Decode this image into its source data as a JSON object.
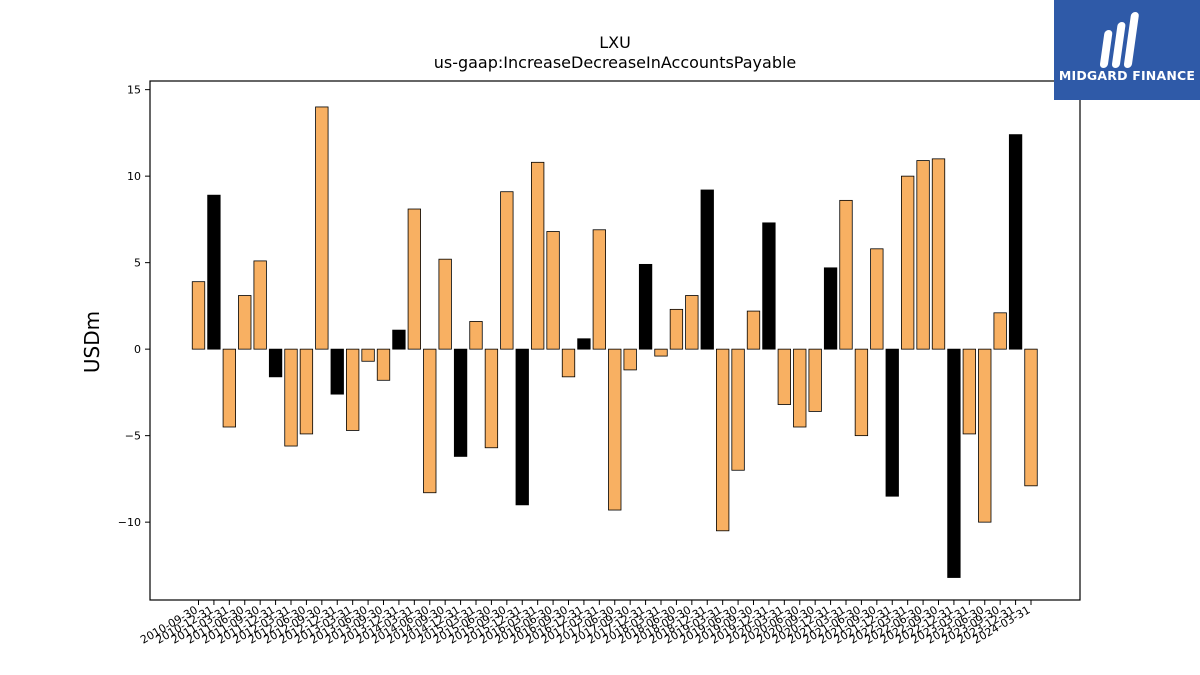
{
  "logo": {
    "text": "MIDGARD FINANCE",
    "background": "#2f5aa8",
    "icon": "midgard-logo-icon"
  },
  "colors": {
    "positive_bar": "#f8b062",
    "highlight_bar": "#000000",
    "bar_edge": "#000000"
  },
  "chart_data": {
    "type": "bar",
    "title": "LXU",
    "subtitle": "us-gaap:IncreaseDecreaseInAccountsPayable",
    "xlabel": "",
    "ylabel": "USDm",
    "ylim": [
      -14.5,
      15.5
    ],
    "yticks": [
      15,
      10,
      5,
      0,
      -5,
      -10
    ],
    "ytick_labels": [
      "15",
      "10",
      "5",
      "0",
      "−5",
      "−10"
    ],
    "grid": false,
    "categories": [
      "2010-09-30",
      "2010-12-31",
      "2011-03-31",
      "2011-06-30",
      "2011-09-30",
      "2011-12-31",
      "2012-03-31",
      "2012-06-30",
      "2012-09-30",
      "2012-12-31",
      "2013-03-31",
      "2013-06-30",
      "2013-09-30",
      "2013-12-31",
      "2014-03-31",
      "2014-06-30",
      "2014-09-30",
      "2014-12-31",
      "2015-03-31",
      "2015-06-30",
      "2015-09-30",
      "2015-12-31",
      "2016-03-31",
      "2016-06-30",
      "2016-09-30",
      "2016-12-31",
      "2017-03-31",
      "2017-06-30",
      "2017-09-30",
      "2017-12-31",
      "2018-03-31",
      "2018-06-30",
      "2018-09-30",
      "2018-12-31",
      "2019-03-31",
      "2019-06-30",
      "2019-09-30",
      "2019-12-31",
      "2020-03-31",
      "2020-06-30",
      "2020-09-30",
      "2020-12-31",
      "2021-03-31",
      "2021-06-30",
      "2021-09-30",
      "2021-12-31",
      "2022-03-31",
      "2022-06-30",
      "2022-09-30",
      "2022-12-31",
      "2023-03-31",
      "2023-06-30",
      "2023-09-30",
      "2023-12-31",
      "2024-03-31"
    ],
    "values": [
      3.9,
      8.9,
      -4.5,
      3.1,
      5.1,
      -1.6,
      -5.6,
      -4.9,
      14.0,
      -2.6,
      -4.7,
      -0.7,
      -1.8,
      1.1,
      8.1,
      -8.3,
      5.2,
      -6.2,
      1.6,
      -5.7,
      9.1,
      -9.0,
      10.8,
      6.8,
      -1.6,
      0.6,
      6.9,
      -9.3,
      -1.2,
      4.9,
      -0.4,
      2.3,
      3.1,
      9.2,
      -10.5,
      -7.0,
      2.2,
      7.3,
      -3.2,
      -4.5,
      -3.6,
      4.7,
      8.6,
      -5.0,
      5.8,
      -8.5,
      10.0,
      10.9,
      11.0,
      -13.2,
      -4.9,
      -10.0,
      2.1,
      12.4,
      -7.9
    ],
    "highlighted": [
      false,
      true,
      false,
      false,
      false,
      true,
      false,
      false,
      false,
      true,
      false,
      false,
      false,
      true,
      false,
      false,
      false,
      true,
      false,
      false,
      false,
      true,
      false,
      false,
      false,
      true,
      false,
      false,
      false,
      true,
      false,
      false,
      false,
      true,
      false,
      false,
      false,
      true,
      false,
      false,
      false,
      true,
      false,
      false,
      false,
      true,
      false,
      false,
      false,
      true,
      false,
      false,
      false,
      true,
      false
    ]
  }
}
